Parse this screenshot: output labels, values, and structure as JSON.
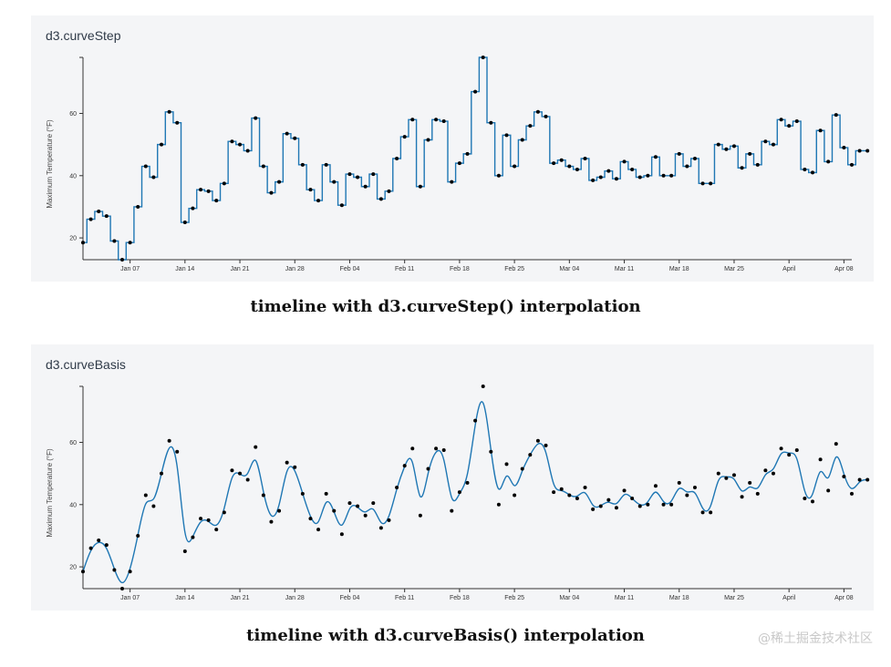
{
  "charts": [
    {
      "title": "d3.curveStep",
      "caption": "timeline with d3.curveStep() interpolation"
    },
    {
      "title": "d3.curveBasis",
      "caption": "timeline with d3.curveBasis() interpolation"
    }
  ],
  "watermark": "@稀土掘金技术社区",
  "colors": {
    "line": "#1f77b4",
    "point": "#000000",
    "panel": "#f4f5f7"
  },
  "chart_data": [
    {
      "type": "line",
      "curve": "step",
      "title": "d3.curveStep",
      "xlabel": "",
      "ylabel": "Maximum Temperature (°F)",
      "x_ticks": [
        "Jan 07",
        "Jan 14",
        "Jan 21",
        "Jan 28",
        "Feb 04",
        "Feb 11",
        "Feb 18",
        "Feb 25",
        "Mar 04",
        "Mar 11",
        "Mar 18",
        "Mar 25",
        "April",
        "Apr 08"
      ],
      "y_ticks": [
        20,
        40,
        60
      ],
      "ylim": [
        13,
        78
      ],
      "xlim": [
        "2018-01-01",
        "2018-04-09"
      ],
      "x_start": "2018-01-01",
      "values": [
        18.5,
        26,
        28.5,
        27,
        19,
        13,
        18.5,
        30,
        43,
        39.5,
        50,
        60.5,
        57,
        25,
        29.5,
        35.5,
        35,
        32,
        37.5,
        51,
        50,
        48,
        58.5,
        43,
        34.5,
        38,
        53.5,
        52,
        43.5,
        35.5,
        32,
        43.5,
        38,
        30.5,
        40.5,
        39.5,
        36.5,
        40.5,
        32.5,
        35,
        45.5,
        52.5,
        58,
        36.5,
        51.5,
        58,
        57.5,
        38,
        44,
        47,
        67,
        78,
        57,
        40,
        53,
        43,
        51.5,
        56,
        60.5,
        59,
        44,
        45,
        43,
        42,
        45.5,
        38.5,
        39.5,
        41.5,
        39,
        44.5,
        42,
        39.5,
        40,
        46,
        40,
        40,
        47,
        43,
        45.5,
        37.5,
        37.5,
        50,
        48.5,
        49.5,
        42.5,
        47,
        43.5,
        51,
        50,
        58,
        56,
        57.5,
        42,
        41,
        54.5,
        44.5,
        59.5,
        49,
        43.5,
        48,
        48
      ]
    },
    {
      "type": "line",
      "curve": "basis",
      "title": "d3.curveBasis",
      "xlabel": "",
      "ylabel": "Maximum Temperature (°F)",
      "x_ticks": [
        "Jan 07",
        "Jan 14",
        "Jan 21",
        "Jan 28",
        "Feb 04",
        "Feb 11",
        "Feb 18",
        "Feb 25",
        "Mar 04",
        "Mar 11",
        "Mar 18",
        "Mar 25",
        "April",
        "Apr 08"
      ],
      "y_ticks": [
        20,
        40,
        60
      ],
      "ylim": [
        13,
        78
      ],
      "xlim": [
        "2018-01-01",
        "2018-04-09"
      ],
      "x_start": "2018-01-01",
      "values": [
        18.5,
        26,
        28.5,
        27,
        19,
        13,
        18.5,
        30,
        43,
        39.5,
        50,
        60.5,
        57,
        25,
        29.5,
        35.5,
        35,
        32,
        37.5,
        51,
        50,
        48,
        58.5,
        43,
        34.5,
        38,
        53.5,
        52,
        43.5,
        35.5,
        32,
        43.5,
        38,
        30.5,
        40.5,
        39.5,
        36.5,
        40.5,
        32.5,
        35,
        45.5,
        52.5,
        58,
        36.5,
        51.5,
        58,
        57.5,
        38,
        44,
        47,
        67,
        78,
        57,
        40,
        53,
        43,
        51.5,
        56,
        60.5,
        59,
        44,
        45,
        43,
        42,
        45.5,
        38.5,
        39.5,
        41.5,
        39,
        44.5,
        42,
        39.5,
        40,
        46,
        40,
        40,
        47,
        43,
        45.5,
        37.5,
        37.5,
        50,
        48.5,
        49.5,
        42.5,
        47,
        43.5,
        51,
        50,
        58,
        56,
        57.5,
        42,
        41,
        54.5,
        44.5,
        59.5,
        49,
        43.5,
        48,
        48
      ]
    }
  ]
}
